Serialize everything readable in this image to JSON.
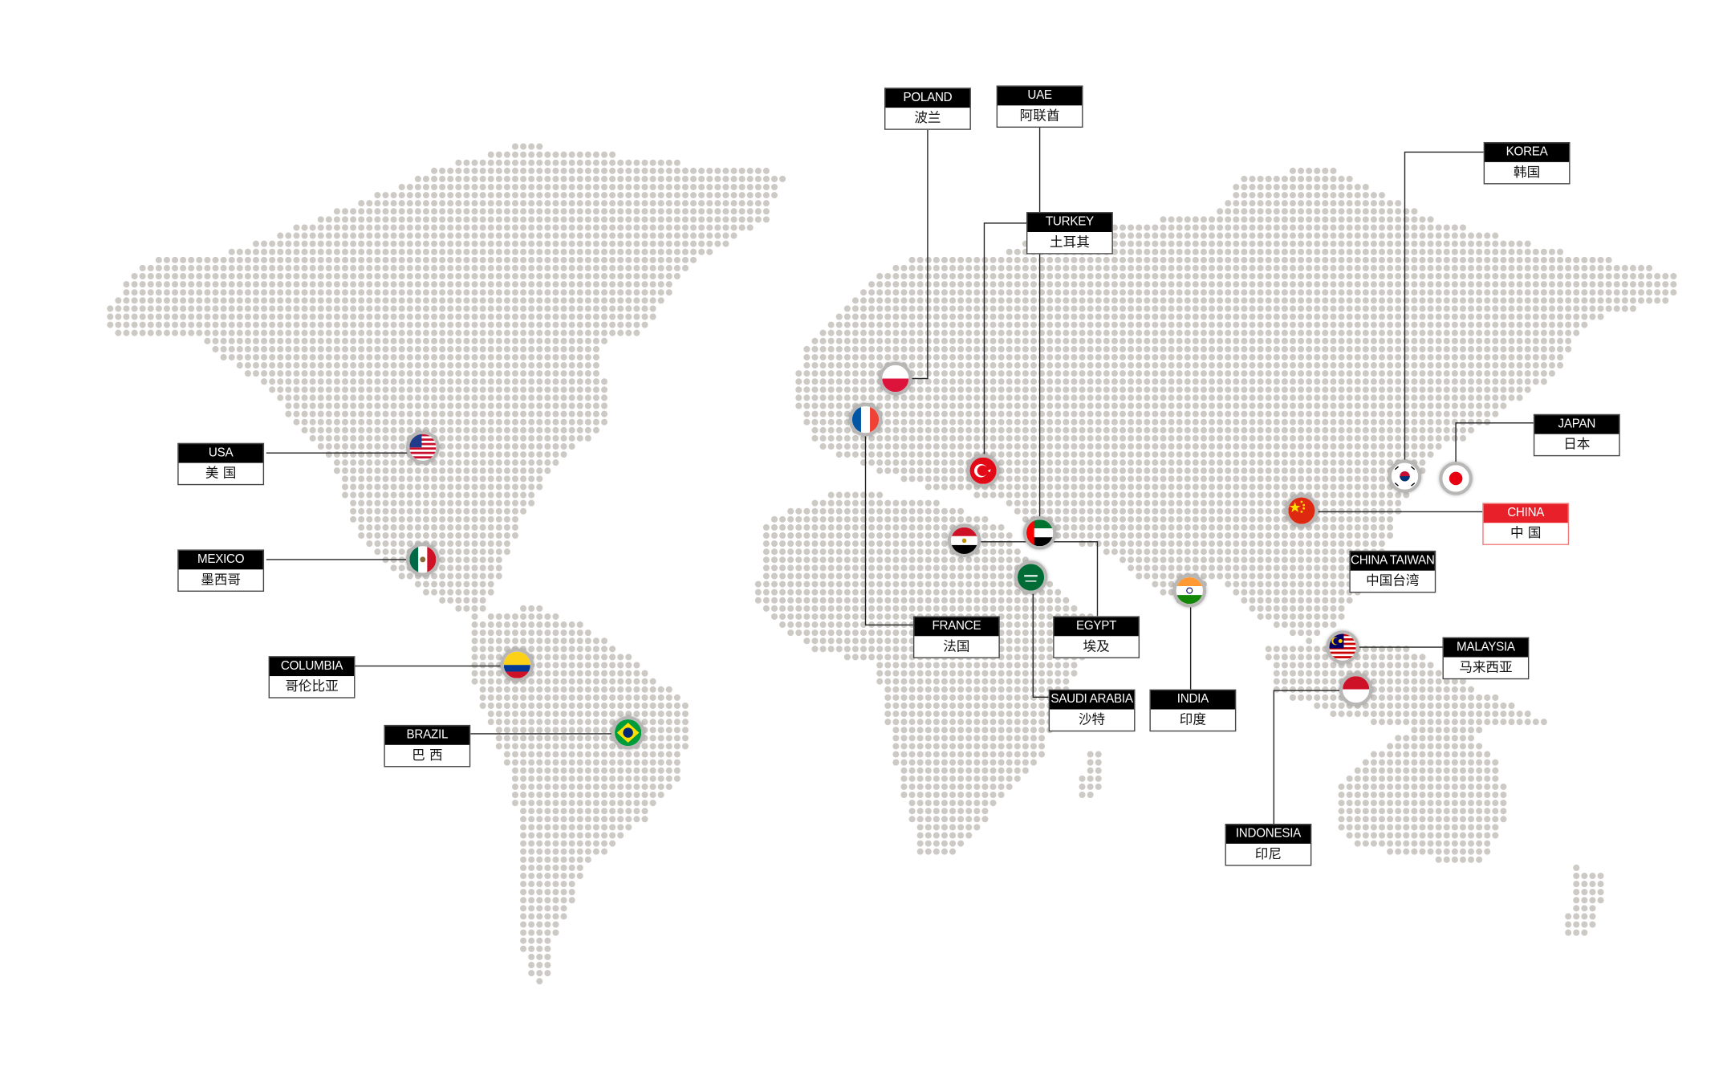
{
  "map": {
    "dot_color": "#cdcac6",
    "line_color": "#222222",
    "highlight_color": "#e8202a"
  },
  "countries": [
    {
      "en": "USA",
      "zh": "美 国",
      "flag": "us-flag-icon"
    },
    {
      "en": "MEXICO",
      "zh": "墨西哥",
      "flag": "mexico-flag-icon"
    },
    {
      "en": "COLUMBIA",
      "zh": "哥伦比亚",
      "flag": "colombia-flag-icon"
    },
    {
      "en": "BRAZIL",
      "zh": "巴 西",
      "flag": "brazil-flag-icon"
    },
    {
      "en": "POLAND",
      "zh": "波兰",
      "flag": "poland-flag-icon"
    },
    {
      "en": "UAE",
      "zh": "阿联酋",
      "flag": "uae-flag-icon"
    },
    {
      "en": "TURKEY",
      "zh": "土耳其",
      "flag": "turkey-flag-icon"
    },
    {
      "en": "FRANCE",
      "zh": "法国",
      "flag": "france-flag-icon"
    },
    {
      "en": "EGYPT",
      "zh": "埃及",
      "flag": "egypt-flag-icon"
    },
    {
      "en": "SAUDI ARABIA",
      "zh": "沙特",
      "flag": "saudi-flag-icon"
    },
    {
      "en": "INDIA",
      "zh": "印度",
      "flag": "india-flag-icon"
    },
    {
      "en": "KOREA",
      "zh": "韩国",
      "flag": "korea-flag-icon"
    },
    {
      "en": "JAPAN",
      "zh": "日本",
      "flag": "japan-flag-icon"
    },
    {
      "en": "CHINA",
      "zh": "中 国",
      "flag": "china-flag-icon",
      "highlighted": true
    },
    {
      "en": "CHINA TAIWAN",
      "zh": "中国台湾",
      "flag": ""
    },
    {
      "en": "MALAYSIA",
      "zh": "马来西亚",
      "flag": "malaysia-flag-icon"
    },
    {
      "en": "INDONESIA",
      "zh": "印尼",
      "flag": "indonesia-flag-icon"
    }
  ]
}
